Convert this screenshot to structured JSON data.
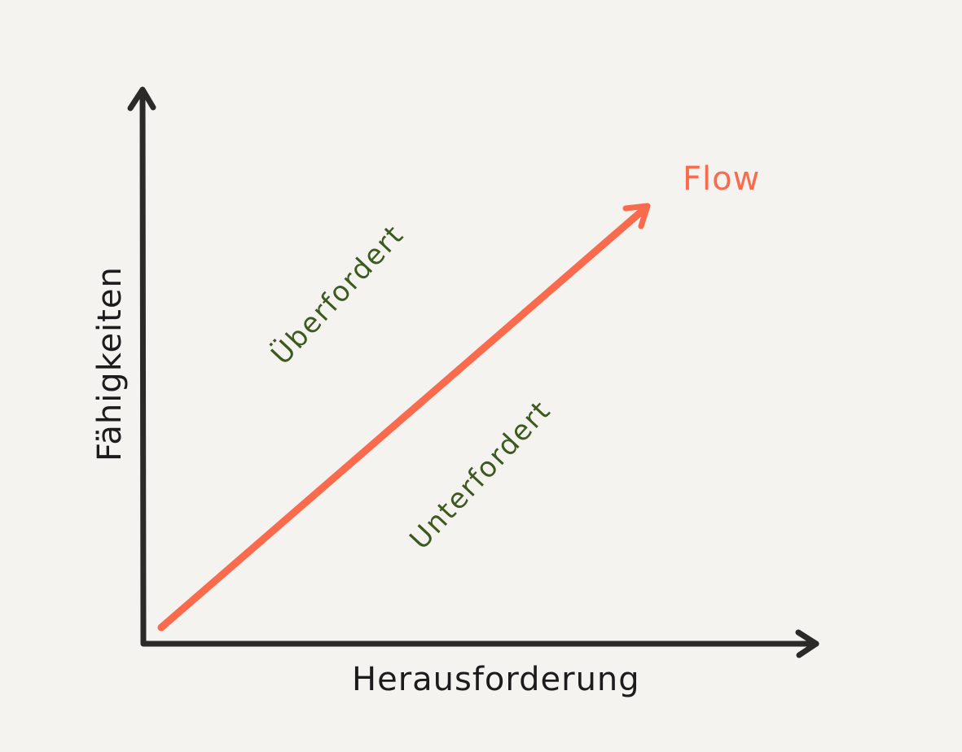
{
  "diagram": {
    "x_axis_label": "Herausforderung",
    "y_axis_label": "Fähigkeiten",
    "arrow_label": "Flow",
    "region_above_label": "Überfordert",
    "region_below_label": "Unterfordert"
  },
  "colors": {
    "background": "#f5f3f0",
    "axis": "#2a2a28",
    "flow_arrow": "#fa6a4d",
    "region_text": "#3d5a1e",
    "axis_text": "#1c1c1c"
  }
}
